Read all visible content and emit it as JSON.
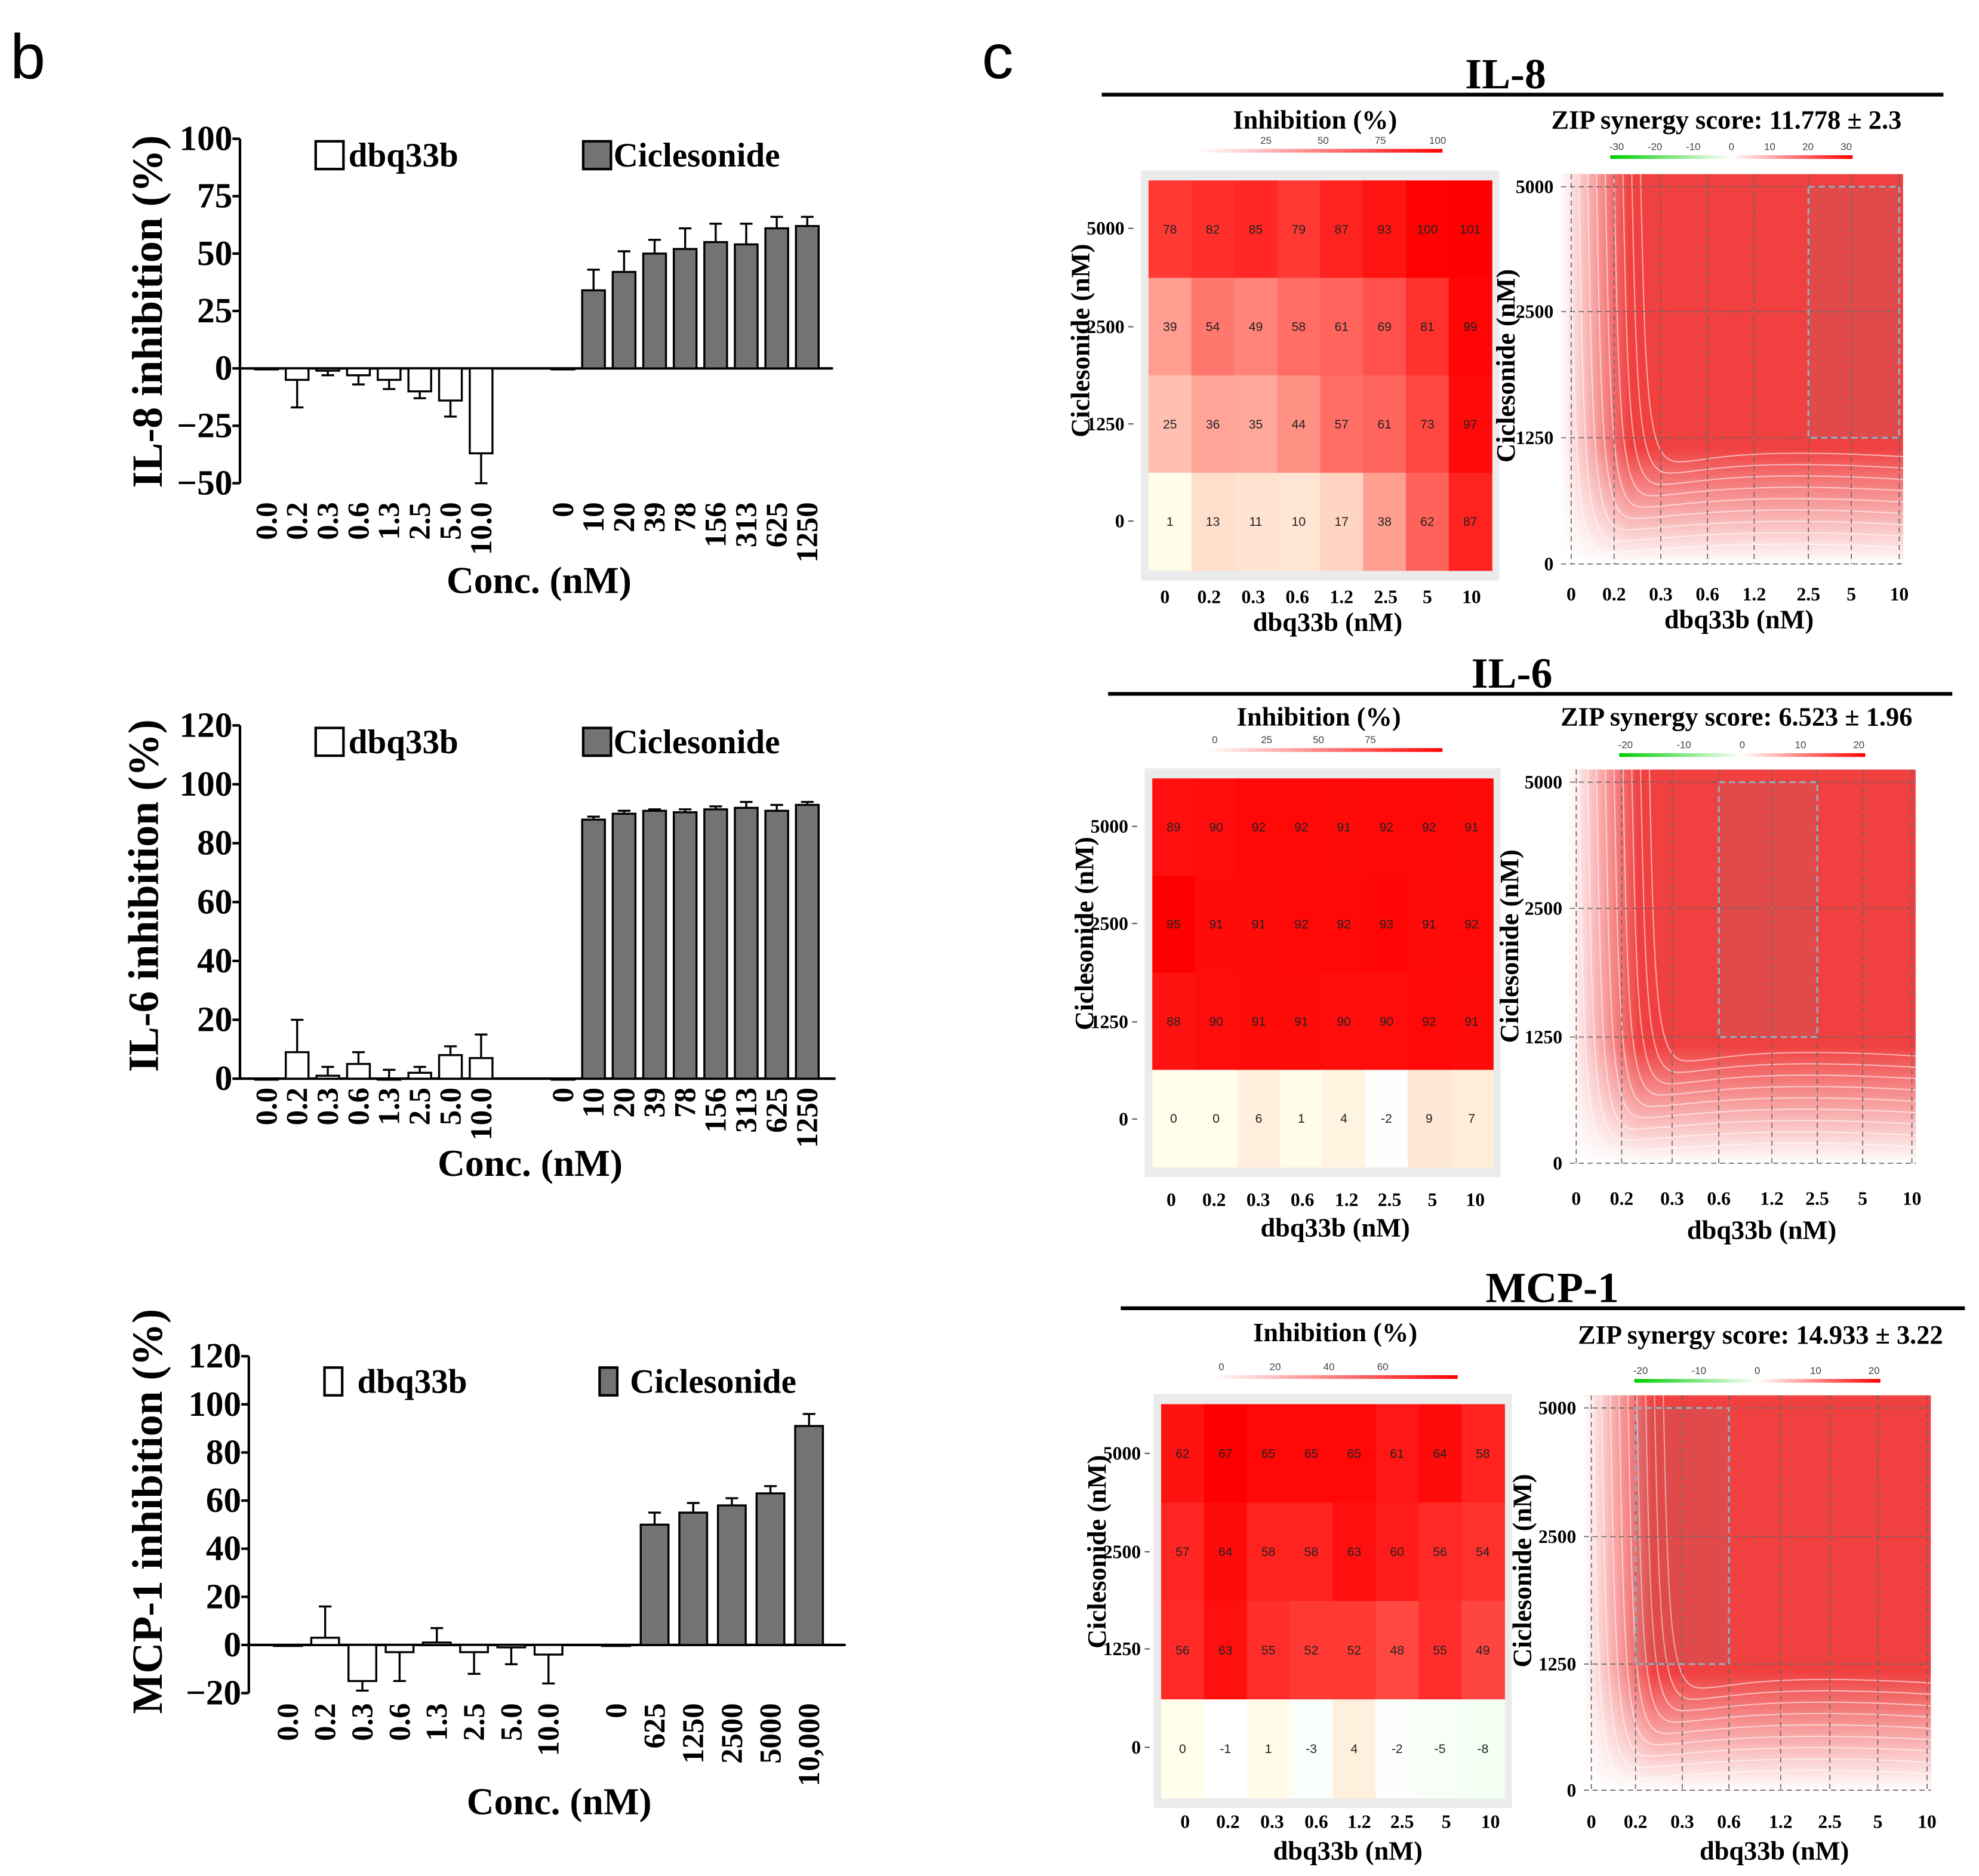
{
  "panel_labels": {
    "b": "b",
    "c": "c"
  },
  "chart_data": [
    {
      "type": "bar",
      "id": "il8-bar",
      "ylabel": "IL-8 inhibition (%)",
      "xlabel": "Conc. (nM)",
      "ylim": [
        -50,
        100
      ],
      "yticks": [
        100,
        75,
        50,
        25,
        0,
        -25,
        -50
      ],
      "yticklabels": [
        "100",
        "75",
        "50",
        "25",
        "0",
        "−25",
        "−50"
      ],
      "legend": [
        "dbq33b",
        "Ciclesonide"
      ],
      "legend_placement": "top",
      "series": [
        {
          "name": "dbq33b",
          "categories": [
            "0.0",
            "0.2",
            "0.3",
            "0.6",
            "1.3",
            "2.5",
            "5.0",
            "10.0"
          ],
          "values": [
            0,
            -5,
            -1,
            -3,
            -5,
            -10,
            -14,
            -37
          ],
          "errors": [
            0,
            12,
            2,
            4,
            4,
            3,
            7,
            13
          ]
        },
        {
          "name": "Ciclesonide",
          "categories": [
            "0",
            "10",
            "20",
            "39",
            "78",
            "156",
            "313",
            "625",
            "1250"
          ],
          "values": [
            0,
            34,
            42,
            50,
            52,
            55,
            54,
            61,
            62
          ],
          "errors": [
            0,
            9,
            9,
            6,
            9,
            8,
            9,
            5,
            4
          ]
        }
      ]
    },
    {
      "type": "bar",
      "id": "il6-bar",
      "ylabel": "IL-6 inhibition (%)",
      "xlabel": "Conc. (nM)",
      "ylim": [
        0,
        120
      ],
      "yticks": [
        120,
        100,
        80,
        60,
        40,
        20,
        0
      ],
      "yticklabels": [
        "120",
        "100",
        "80",
        "60",
        "40",
        "20",
        "0"
      ],
      "legend": [
        "dbq33b",
        "Ciclesonide"
      ],
      "legend_placement": "top",
      "series": [
        {
          "name": "dbq33b",
          "categories": [
            "0.0",
            "0.2",
            "0.3",
            "0.6",
            "1.3",
            "2.5",
            "5.0",
            "10.0"
          ],
          "values": [
            0,
            9,
            1,
            5,
            0,
            2,
            8,
            7
          ],
          "errors": [
            0,
            11,
            3,
            4,
            3,
            2,
            3,
            8
          ]
        },
        {
          "name": "Ciclesonide",
          "categories": [
            "0",
            "10",
            "20",
            "39",
            "78",
            "156",
            "313",
            "625",
            "1250"
          ],
          "values": [
            0,
            88,
            90,
            91,
            90.5,
            91.5,
            92,
            91,
            93
          ],
          "errors": [
            0,
            1,
            1,
            0.5,
            1,
            1,
            2,
            2,
            1
          ]
        }
      ]
    },
    {
      "type": "bar",
      "id": "mcp1-bar",
      "ylabel": "MCP-1 inhibition (%)",
      "xlabel": "Conc. (nM)",
      "ylim": [
        -20,
        120
      ],
      "yticks": [
        120,
        100,
        80,
        60,
        40,
        20,
        0,
        -20
      ],
      "yticklabels": [
        "120",
        "100",
        "80",
        "60",
        "40",
        "20",
        "0",
        "−20"
      ],
      "legend": [
        "dbq33b",
        "Ciclesonide"
      ],
      "legend_placement": "top",
      "series": [
        {
          "name": "dbq33b",
          "categories": [
            "0.0",
            "0.2",
            "0.3",
            "0.6",
            "1.3",
            "2.5",
            "5.0",
            "10.0"
          ],
          "values": [
            0,
            3,
            -15,
            -3,
            1,
            -3,
            -1,
            -4
          ],
          "errors": [
            0,
            13,
            4,
            12,
            6,
            9,
            7,
            12
          ]
        },
        {
          "name": "Ciclesonide",
          "categories": [
            "0",
            "625",
            "1250",
            "2500",
            "5000",
            "10,000"
          ],
          "values": [
            0,
            50,
            55,
            58,
            63,
            91
          ],
          "errors": [
            0,
            5,
            4,
            3,
            3,
            5
          ]
        }
      ]
    },
    {
      "type": "heatmap",
      "id": "il8-heatmap",
      "group_title": "IL-8",
      "title": "Inhibition (%)",
      "colorbar_ticks": [
        "25",
        "50",
        "75",
        "100"
      ],
      "colorbar_max": 101,
      "xlabel": "dbq33b (nM)",
      "ylabel": "Ciclesonide (nM)",
      "x": [
        "0",
        "0.2",
        "0.3",
        "0.6",
        "1.2",
        "2.5",
        "5",
        "10"
      ],
      "y": [
        "5000",
        "2500",
        "1250",
        "0"
      ],
      "values": [
        [
          78,
          82,
          85,
          79,
          87,
          93,
          100,
          101
        ],
        [
          39,
          54,
          49,
          58,
          61,
          69,
          81,
          99
        ],
        [
          25,
          36,
          35,
          44,
          57,
          61,
          73,
          97
        ],
        [
          1,
          13,
          11,
          10,
          17,
          38,
          62,
          87
        ]
      ]
    },
    {
      "type": "heatmap",
      "id": "il8-zip",
      "surface": true,
      "title": "ZIP synergy score: 11.778 ± 2.3",
      "colorbar_ticks": [
        "-30",
        "-20",
        "-10",
        "0",
        "10",
        "20",
        "30"
      ],
      "xlabel": "dbq33b (nM)",
      "ylabel": "Ciclesonide (nM)",
      "x": [
        "0",
        "0.2",
        "0.3",
        "0.6",
        "1.2",
        "2.5",
        "5",
        "10"
      ],
      "y": [
        "5000",
        "2500",
        "1250",
        "0"
      ],
      "highlight": {
        "x": [
          "2.5",
          "10"
        ],
        "y": [
          "1250",
          "5000"
        ]
      }
    },
    {
      "type": "heatmap",
      "id": "il6-heatmap",
      "group_title": "IL-6",
      "title": "Inhibition (%)",
      "colorbar_ticks": [
        "0",
        "25",
        "50",
        "75"
      ],
      "colorbar_max": 95,
      "xlabel": "dbq33b (nM)",
      "ylabel": "Ciclesonide (nM)",
      "x": [
        "0",
        "0.2",
        "0.3",
        "0.6",
        "1.2",
        "2.5",
        "5",
        "10"
      ],
      "y": [
        "5000",
        "2500",
        "1250",
        "0"
      ],
      "values": [
        [
          89,
          90,
          92,
          92,
          91,
          92,
          92,
          91
        ],
        [
          95,
          91,
          91,
          92,
          92,
          93,
          91,
          92
        ],
        [
          88,
          90,
          91,
          91,
          90,
          90,
          92,
          91
        ],
        [
          0,
          0,
          6,
          1,
          4,
          -2,
          9,
          7
        ]
      ]
    },
    {
      "type": "heatmap",
      "id": "il6-zip",
      "surface": true,
      "title": "ZIP synergy score: 6.523 ± 1.96",
      "colorbar_ticks": [
        "-20",
        "-10",
        "0",
        "10",
        "20"
      ],
      "xlabel": "dbq33b (nM)",
      "ylabel": "Ciclesonide (nM)",
      "x": [
        "0",
        "0.2",
        "0.3",
        "0.6",
        "1.2",
        "2.5",
        "5",
        "10"
      ],
      "y": [
        "5000",
        "2500",
        "1250",
        "0"
      ],
      "highlight": {
        "x": [
          "0.6",
          "2.5"
        ],
        "y": [
          "1250",
          "5000"
        ]
      }
    },
    {
      "type": "heatmap",
      "id": "mcp1-heatmap",
      "group_title": "MCP-1",
      "title": "Inhibition (%)",
      "colorbar_ticks": [
        "0",
        "20",
        "40",
        "60"
      ],
      "colorbar_max": 67,
      "xlabel": "dbq33b (nM)",
      "ylabel": "Ciclesonide (nM)",
      "x": [
        "0",
        "0.2",
        "0.3",
        "0.6",
        "1.2",
        "2.5",
        "5",
        "10"
      ],
      "y": [
        "5000",
        "2500",
        "1250",
        "0"
      ],
      "values": [
        [
          62,
          67,
          65,
          65,
          65,
          61,
          64,
          58
        ],
        [
          57,
          64,
          58,
          58,
          63,
          60,
          56,
          54
        ],
        [
          56,
          63,
          55,
          52,
          52,
          48,
          55,
          49
        ],
        [
          0,
          -1,
          1,
          -3,
          4,
          -2,
          -5,
          -8
        ]
      ]
    },
    {
      "type": "heatmap",
      "id": "mcp1-zip",
      "surface": true,
      "title": "ZIP synergy score: 14.933 ± 3.22",
      "colorbar_ticks": [
        "-20",
        "-10",
        "0",
        "10",
        "20"
      ],
      "xlabel": "dbq33b (nM)",
      "ylabel": "Ciclesonide (nM)",
      "x": [
        "0",
        "0.2",
        "0.3",
        "0.6",
        "1.2",
        "2.5",
        "5",
        "10"
      ],
      "y": [
        "5000",
        "2500",
        "1250",
        "0"
      ],
      "highlight": {
        "x": [
          "0.2",
          "0.6"
        ],
        "y": [
          "1250",
          "5000"
        ]
      }
    }
  ],
  "colors": {
    "dbq33b_fill": "#ffffff",
    "ciclesonide_fill": "#737373",
    "high": "#ff0000",
    "low": "#00cc00"
  }
}
